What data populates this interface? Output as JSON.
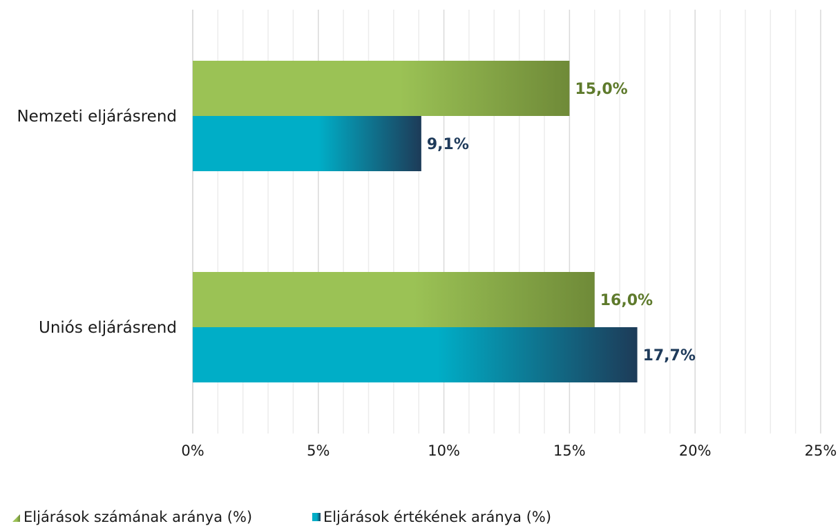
{
  "chart_data": {
    "type": "bar",
    "orientation": "horizontal",
    "categories": [
      "Nemzeti eljárásrend",
      "Uniós eljárásrend"
    ],
    "series": [
      {
        "name": "Eljárások számának aránya (%)",
        "values": [
          15.0,
          16.0
        ],
        "labels": [
          "15,0%",
          "16,0%"
        ],
        "colors": {
          "start": "#9bc255",
          "end": "#6f8a38",
          "label": "#5e7a2c"
        }
      },
      {
        "name": "Eljárások értékének aránya (%)",
        "values": [
          9.1,
          17.7
        ],
        "labels": [
          "9,1%",
          "17,7%"
        ],
        "colors": {
          "start": "#00aec7",
          "end": "#1d3b58",
          "label": "#1e3a5a"
        }
      }
    ],
    "xlim": [
      0,
      25
    ],
    "xticks": [
      0,
      5,
      10,
      15,
      20,
      25
    ],
    "xtick_labels": [
      "0%",
      "5%",
      "10%",
      "15%",
      "20%",
      "25%"
    ],
    "minor_gridlines": true,
    "legend": "bottom-left"
  }
}
